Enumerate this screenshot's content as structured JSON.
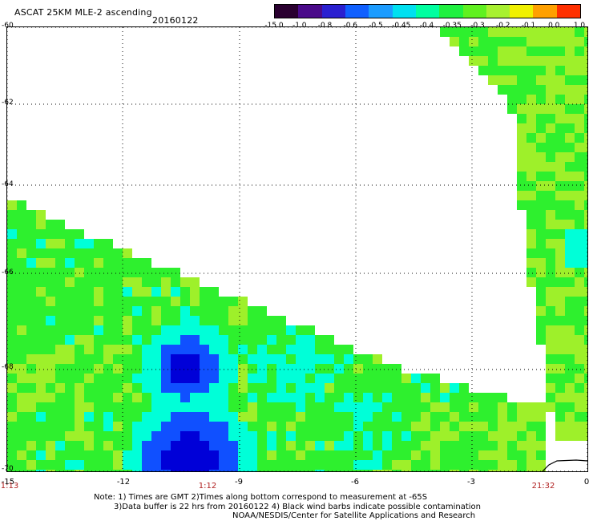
{
  "header": {
    "title": "ASCAT 25KM MLE-2 ascending",
    "date": "20160122"
  },
  "colorbar": {
    "ticks": [
      "-15.0",
      "-1.0",
      "-0.8",
      "-0.6",
      "-0.5",
      "-0.45",
      "-0.4",
      "-0.35",
      "-0.3",
      "-0.2",
      "-0.1",
      "0.0",
      "1.0"
    ],
    "colors": [
      "#2a0030",
      "#4a0a8a",
      "#2a20d0",
      "#1060ff",
      "#1c9cff",
      "#00e0f0",
      "#00ffa0",
      "#20f040",
      "#60f020",
      "#a8f030",
      "#f0f000",
      "#ffa000",
      "#ff3000"
    ]
  },
  "axes": {
    "lat_ticks": [
      "-60",
      "-62",
      "-64",
      "-66",
      "-68",
      "-70"
    ],
    "lon_ticks": [
      "-15",
      "-12",
      "-9",
      "-6",
      "-3",
      "0"
    ]
  },
  "times": [
    "1:13",
    "1:12",
    "21:32"
  ],
  "notes": {
    "line1": "Note: 1) Times are GMT 2)Times along bottom correspond to measurement at -65S",
    "line2": "3)Data buffer is 22 hrs from 20160122 4) Black wind barbs indicate possible contamination",
    "line3": "NOAA/NESDIS/Center for Satellite Applications and Research"
  },
  "colors": {
    "green": "#2ef02e",
    "light_green": "#9ef02a",
    "cyan": "#00ffd8",
    "blue": "#1050ff",
    "deep_blue": "#0000d8"
  }
}
